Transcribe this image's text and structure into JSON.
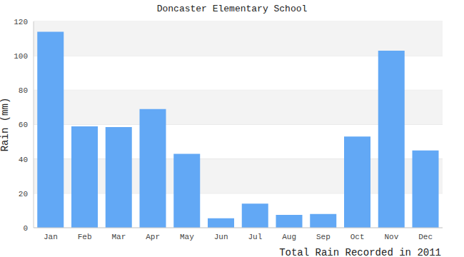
{
  "chart_data": {
    "type": "bar",
    "title": "Doncaster Elementary School",
    "x_label": "Total Rain Recorded in 2011",
    "y_label": "Rain (mm)",
    "categories": [
      "Jan",
      "Feb",
      "Mar",
      "Apr",
      "May",
      "Jun",
      "Jul",
      "Aug",
      "Sep",
      "Oct",
      "Nov",
      "Dec"
    ],
    "values": [
      114,
      59,
      58.5,
      69,
      43,
      5.5,
      14,
      7.5,
      8,
      53,
      103,
      45
    ],
    "color": "#62a8f5",
    "ylim": [
      0,
      120
    ],
    "yticks": [
      0,
      20,
      40,
      60,
      80,
      100,
      120
    ],
    "grid": true
  }
}
